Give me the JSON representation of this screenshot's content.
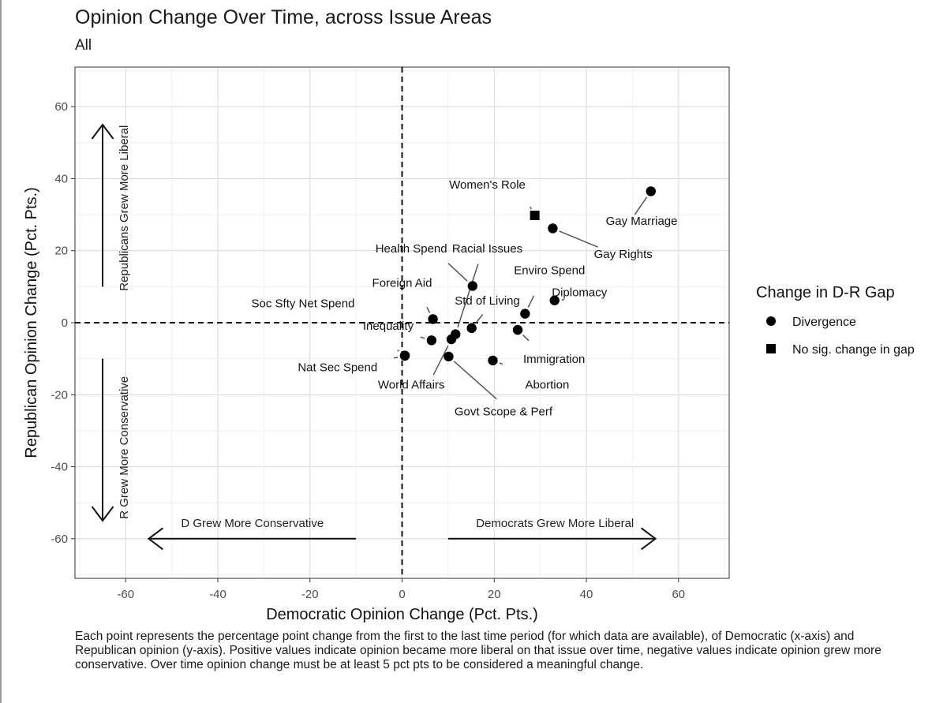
{
  "title": "Opinion Change Over Time, across Issue Areas",
  "subtitle": "All",
  "caption": "Each point represents the percentage point change from the first to the last time period (for which data are available), of Democratic (x-axis) and Republican opinion (y-axis). Positive values indicate opinion became more liberal on that issue over time, negative values indicate opinion grew more conservative. Over time opinion change must be at least 5 pct pts to be considered a meaningful change.",
  "chart_data": {
    "type": "scatter",
    "title": "Opinion Change Over Time, across Issue Areas",
    "subtitle": "All",
    "xlabel": "Democratic Opinion Change (Pct. Pts.)",
    "ylabel": "Republican Opinion Change (Pct. Pts.)",
    "xlim": [
      -71,
      71
    ],
    "ylim": [
      -71,
      71
    ],
    "xticks": [
      -60,
      -40,
      -20,
      0,
      20,
      40,
      60
    ],
    "yticks": [
      -60,
      -40,
      -20,
      0,
      20,
      40,
      60
    ],
    "grid": true,
    "reference_lines": {
      "x": 0,
      "y": 0,
      "style": "dashed"
    },
    "legend": {
      "title": "Change in D-R Gap",
      "placement": "right",
      "entries": [
        {
          "label": "Divergence",
          "shape": "circle"
        },
        {
          "label": "No sig. change in gap",
          "shape": "square"
        }
      ]
    },
    "annotations": [
      {
        "text": "Republicans Grew More Liberal",
        "direction": "up"
      },
      {
        "text": "R Grew More Conservative",
        "direction": "down"
      },
      {
        "text": "D Grew More Conservative",
        "direction": "left"
      },
      {
        "text": "Democrats Grew More Liberal",
        "direction": "right"
      }
    ],
    "points": [
      {
        "label": "Gay Marriage",
        "x": 54,
        "y": 36.5,
        "group": "Divergence"
      },
      {
        "label": "Women's Role",
        "x": 28.8,
        "y": 29.8,
        "group": "No sig. change in gap"
      },
      {
        "label": "Gay Rights",
        "x": 32.7,
        "y": 26.2,
        "group": "Divergence"
      },
      {
        "label": "Health Spend",
        "x": 15.3,
        "y": 10.2,
        "group": "Divergence"
      },
      {
        "label": "Diplomacy",
        "x": 33.1,
        "y": 6.2,
        "group": "Divergence"
      },
      {
        "label": "Enviro Spend",
        "x": 26.7,
        "y": 2.5,
        "group": "Divergence"
      },
      {
        "label": "Foreign Aid",
        "x": 6.7,
        "y": 1.0,
        "group": "Divergence"
      },
      {
        "label": "Std of Living",
        "x": 15.1,
        "y": -1.5,
        "group": "Divergence"
      },
      {
        "label": "Immigration",
        "x": 25.1,
        "y": -2.0,
        "group": "Divergence"
      },
      {
        "label": "Racial Issues",
        "x": 11.6,
        "y": -3.2,
        "group": "Divergence"
      },
      {
        "label": "World Affairs",
        "x": 10.7,
        "y": -4.6,
        "group": "Divergence"
      },
      {
        "label": "Inequality",
        "x": 6.4,
        "y": -4.9,
        "group": "Divergence"
      },
      {
        "label": "Soc Sfty Net Spend",
        "x": 0.6,
        "y": -9.1,
        "group": "Divergence"
      },
      {
        "label": "Nat Sec Spend",
        "x": 0.6,
        "y": -9.2,
        "group": "Divergence"
      },
      {
        "label": "Govt Scope & Perf",
        "x": 10.1,
        "y": -9.4,
        "group": "Divergence"
      },
      {
        "label": "Abortion",
        "x": 19.7,
        "y": -10.5,
        "group": "Divergence"
      }
    ]
  }
}
